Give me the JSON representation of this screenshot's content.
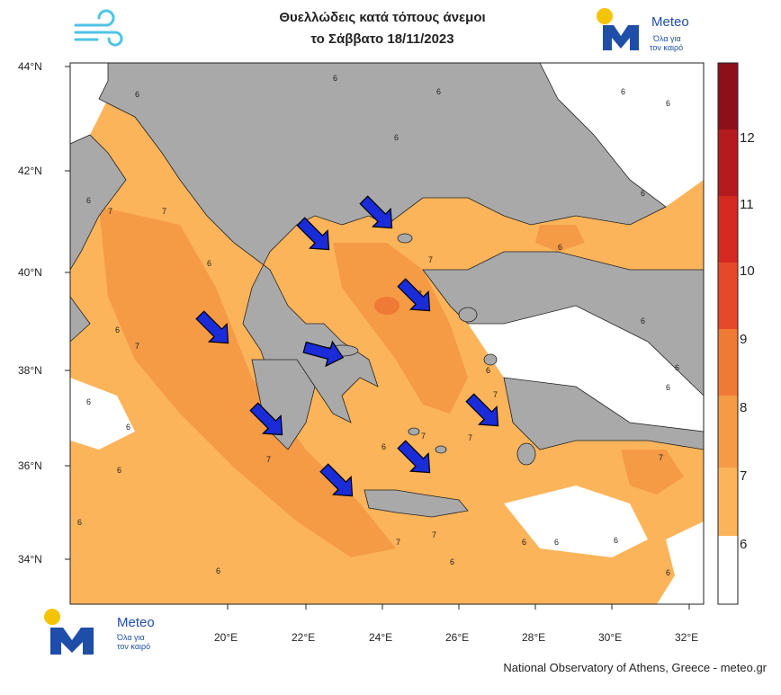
{
  "title": {
    "line1": "Θυελλώδεις κατά τόπους άνεμοι",
    "line2": "το Σάββατο 18/11/2023"
  },
  "brand": {
    "name": "Meteo",
    "tagline_line1": "Όλα για",
    "tagline_line2": "τον καιρό",
    "colors": {
      "blue": "#1f4ea8",
      "sun": "#f5c400"
    }
  },
  "icons": {
    "wind": "wind-icon",
    "arrow": "wind-direction-arrow-icon"
  },
  "credit": "National Observatory of Athens, Greece - meteo.gr",
  "axes": {
    "lat_ticks": [
      "44°N",
      "42°N",
      "40°N",
      "38°N",
      "36°N",
      "34°N"
    ],
    "lon_ticks": [
      "20°E",
      "22°E",
      "24°E",
      "26°E",
      "28°E",
      "30°E",
      "32°E"
    ]
  },
  "colorbar": {
    "levels": [
      "6",
      "7",
      "8",
      "9",
      "10",
      "11",
      "12"
    ],
    "colors": [
      "#ffffff",
      "#fbb45a",
      "#f59a45",
      "#ef7a35",
      "#e6492a",
      "#d42a22",
      "#b51a1f",
      "#8c0f1a"
    ]
  },
  "land_color": "#a9a9a9",
  "contour_labels": [
    "6",
    "7"
  ],
  "arrow_color": "#1a2bd8"
}
